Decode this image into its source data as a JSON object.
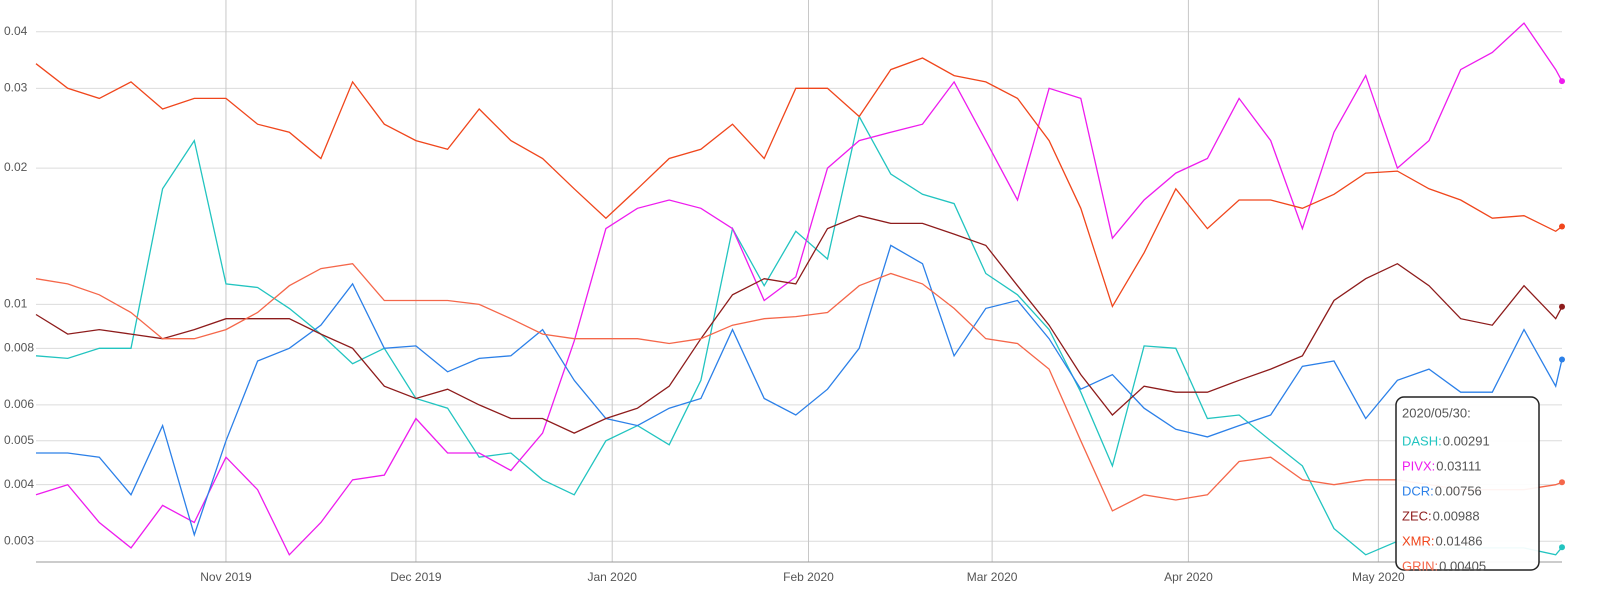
{
  "chart_data": {
    "type": "line",
    "ylog": true,
    "grid": true,
    "x": [
      "2019/10/02",
      "2019/10/07",
      "2019/10/12",
      "2019/10/17",
      "2019/10/22",
      "2019/10/27",
      "2019/11/01",
      "2019/11/06",
      "2019/11/11",
      "2019/11/16",
      "2019/11/21",
      "2019/11/26",
      "2019/12/01",
      "2019/12/06",
      "2019/12/11",
      "2019/12/16",
      "2019/12/21",
      "2019/12/26",
      "2019/12/31",
      "2020/01/05",
      "2020/01/10",
      "2020/01/15",
      "2020/01/20",
      "2020/01/25",
      "2020/01/30",
      "2020/02/04",
      "2020/02/09",
      "2020/02/14",
      "2020/02/19",
      "2020/02/24",
      "2020/02/29",
      "2020/03/05",
      "2020/03/10",
      "2020/03/15",
      "2020/03/20",
      "2020/03/25",
      "2020/03/30",
      "2020/04/04",
      "2020/04/09",
      "2020/04/14",
      "2020/04/19",
      "2020/04/24",
      "2020/04/29",
      "2020/05/04",
      "2020/05/09",
      "2020/05/14",
      "2020/05/19",
      "2020/05/24",
      "2020/05/29",
      "2020/05/30"
    ],
    "xlim": [
      "2019/10/02",
      "2020/05/30"
    ],
    "xticks": [
      {
        "value": "2019/11/01",
        "label": "Nov 2019"
      },
      {
        "value": "2019/12/01",
        "label": "Dec 2019"
      },
      {
        "value": "2020/01/01",
        "label": "Jan 2020"
      },
      {
        "value": "2020/02/01",
        "label": "Feb 2020"
      },
      {
        "value": "2020/03/01",
        "label": "Mar 2020"
      },
      {
        "value": "2020/04/01",
        "label": "Apr 2020"
      },
      {
        "value": "2020/05/01",
        "label": "May 2020"
      }
    ],
    "ylim": [
      0.0027,
      0.047
    ],
    "yticks": [
      0.003,
      0.004,
      0.005,
      0.006,
      0.008,
      0.01,
      0.02,
      0.03,
      0.04
    ],
    "series": [
      {
        "name": "DASH",
        "color": "#22c4c0",
        "values": [
          0.0077,
          0.0076,
          0.008,
          0.008,
          0.018,
          0.023,
          0.0111,
          0.0109,
          0.0098,
          0.0086,
          0.0074,
          0.008,
          0.0062,
          0.0059,
          0.0046,
          0.0047,
          0.0041,
          0.0038,
          0.005,
          0.0054,
          0.0049,
          0.0068,
          0.0147,
          0.011,
          0.0145,
          0.0126,
          0.026,
          0.0194,
          0.0175,
          0.0167,
          0.0117,
          0.0105,
          0.0088,
          0.0064,
          0.0044,
          0.0081,
          0.008,
          0.0056,
          0.0057,
          0.005,
          0.0044,
          0.0032,
          0.0028,
          0.003,
          0.0029,
          0.0029,
          0.0029,
          0.0029,
          0.0028,
          0.00291
        ]
      },
      {
        "name": "PIVX",
        "color": "#ee1cee",
        "values": [
          0.0038,
          0.004,
          0.0033,
          0.0029,
          0.0036,
          0.0033,
          0.0046,
          0.0039,
          0.0028,
          0.0033,
          0.0041,
          0.0042,
          0.0056,
          0.0047,
          0.0047,
          0.0043,
          0.0052,
          0.0083,
          0.0147,
          0.0163,
          0.017,
          0.0163,
          0.0147,
          0.0102,
          0.0115,
          0.02,
          0.023,
          0.024,
          0.025,
          0.031,
          0.023,
          0.017,
          0.03,
          0.0285,
          0.014,
          0.017,
          0.0195,
          0.021,
          0.0285,
          0.023,
          0.0147,
          0.024,
          0.032,
          0.02,
          0.023,
          0.033,
          0.036,
          0.0418,
          0.033,
          0.03111
        ]
      },
      {
        "name": "DCR",
        "color": "#2c80e8",
        "values": [
          0.0047,
          0.0047,
          0.0046,
          0.0038,
          0.0054,
          0.0031,
          0.005,
          0.0075,
          0.008,
          0.009,
          0.0111,
          0.008,
          0.0081,
          0.0071,
          0.0076,
          0.0077,
          0.0088,
          0.0068,
          0.0056,
          0.0054,
          0.0059,
          0.0062,
          0.0088,
          0.0062,
          0.0057,
          0.0065,
          0.008,
          0.0135,
          0.0123,
          0.0077,
          0.0098,
          0.0102,
          0.0084,
          0.0065,
          0.007,
          0.0059,
          0.0053,
          0.0051,
          0.0054,
          0.0057,
          0.0073,
          0.0075,
          0.0056,
          0.0068,
          0.0072,
          0.0064,
          0.0064,
          0.0088,
          0.0066,
          0.00756
        ]
      },
      {
        "name": "ZEC",
        "color": "#8e1c1c",
        "values": [
          0.0095,
          0.0086,
          0.0088,
          0.0086,
          0.0084,
          0.0088,
          0.0093,
          0.0093,
          0.0093,
          0.0086,
          0.008,
          0.0066,
          0.0062,
          0.0065,
          0.006,
          0.0056,
          0.0056,
          0.0052,
          0.0056,
          0.0059,
          0.0066,
          0.0084,
          0.0105,
          0.0114,
          0.0111,
          0.0147,
          0.0157,
          0.0151,
          0.0151,
          0.0143,
          0.0135,
          0.011,
          0.009,
          0.007,
          0.0057,
          0.0066,
          0.0064,
          0.0064,
          0.0068,
          0.0072,
          0.0077,
          0.0102,
          0.0114,
          0.0123,
          0.011,
          0.0093,
          0.009,
          0.011,
          0.0093,
          0.00988
        ]
      },
      {
        "name": "XMR",
        "color": "#f0461c",
        "values": [
          0.034,
          0.03,
          0.0285,
          0.031,
          0.027,
          0.0285,
          0.0285,
          0.025,
          0.024,
          0.021,
          0.031,
          0.025,
          0.023,
          0.022,
          0.027,
          0.023,
          0.021,
          0.018,
          0.0155,
          0.018,
          0.021,
          0.022,
          0.025,
          0.021,
          0.03,
          0.03,
          0.026,
          0.033,
          0.035,
          0.032,
          0.031,
          0.0285,
          0.023,
          0.0163,
          0.0099,
          0.013,
          0.018,
          0.0147,
          0.017,
          0.017,
          0.0163,
          0.0175,
          0.0195,
          0.0197,
          0.018,
          0.017,
          0.0155,
          0.0157,
          0.0145,
          0.01486
        ]
      },
      {
        "name": "GRIN",
        "color": "#f5674a",
        "values": [
          0.0114,
          0.0111,
          0.0105,
          0.0096,
          0.0084,
          0.0084,
          0.0088,
          0.0096,
          0.011,
          0.012,
          0.0123,
          0.0102,
          0.0102,
          0.0102,
          0.01,
          0.0093,
          0.0086,
          0.0084,
          0.0084,
          0.0084,
          0.0082,
          0.0084,
          0.009,
          0.0093,
          0.0094,
          0.0096,
          0.011,
          0.0117,
          0.0111,
          0.0098,
          0.0084,
          0.0082,
          0.0072,
          0.005,
          0.0035,
          0.0038,
          0.0037,
          0.0038,
          0.0045,
          0.0046,
          0.0041,
          0.004,
          0.0041,
          0.0041,
          0.004,
          0.0039,
          0.0039,
          0.0039,
          0.004,
          0.00405
        ]
      }
    ],
    "tooltip": {
      "title": "2020/05/30:",
      "items": [
        {
          "label": "DASH:",
          "value": 0.00291
        },
        {
          "label": "PIVX:",
          "value": 0.03111
        },
        {
          "label": "DCR:",
          "value": 0.00756
        },
        {
          "label": "ZEC:",
          "value": 0.00988
        },
        {
          "label": "XMR:",
          "value": 0.01486
        },
        {
          "label": "GRIN:",
          "value": 0.00405
        }
      ]
    }
  }
}
